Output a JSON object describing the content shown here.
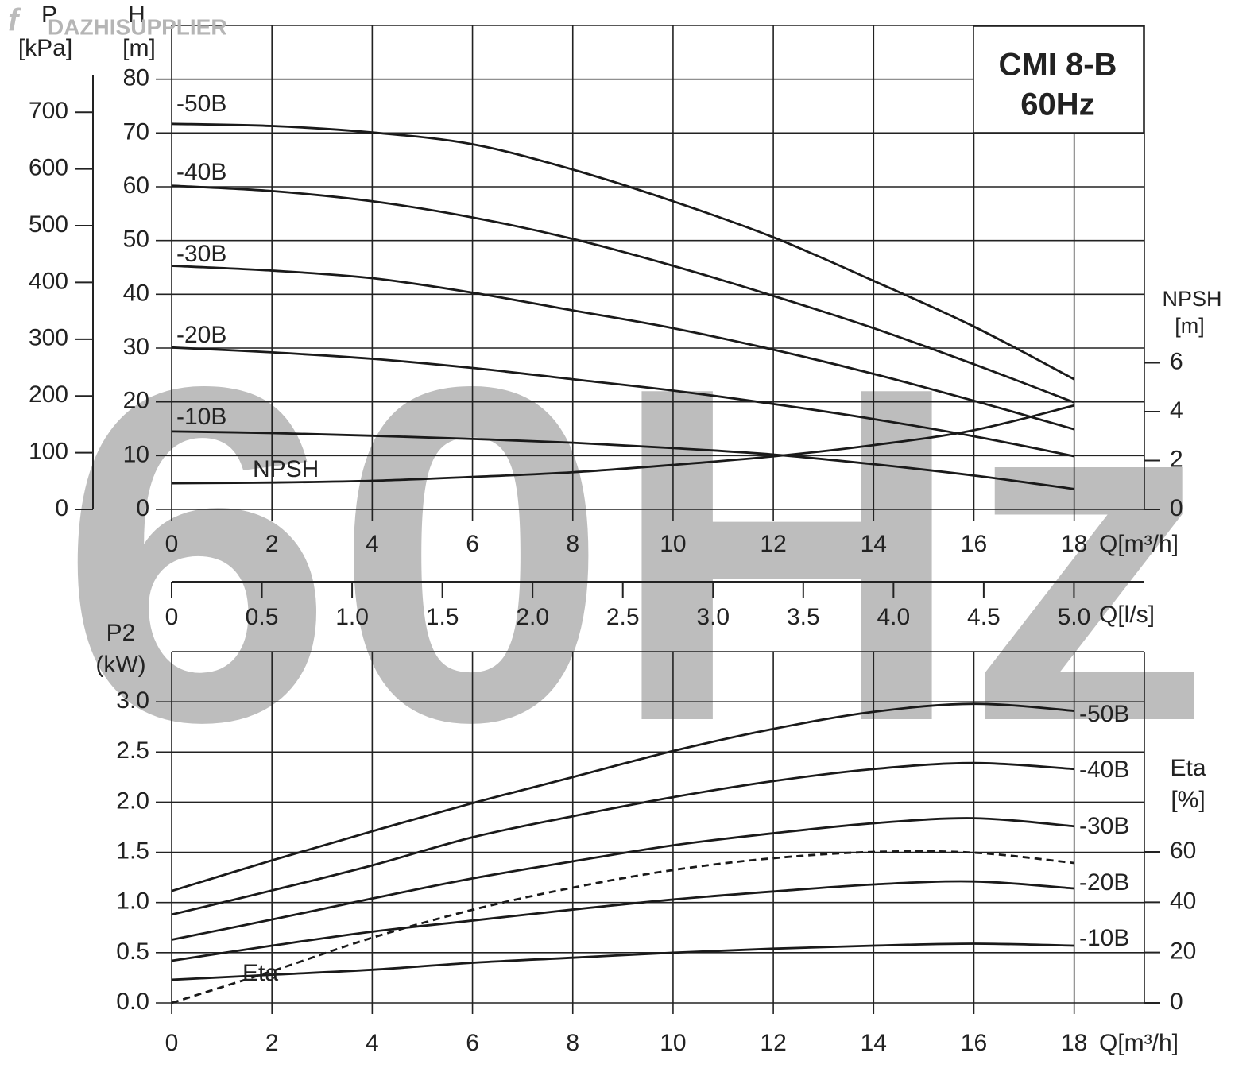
{
  "brand": "DAZHISUPPLIER",
  "watermark": "60Hz",
  "chart_data": [
    {
      "type": "line",
      "title": "CMI 8-B",
      "subtitle": "60Hz",
      "grid": true,
      "x_label": "Q[m³/h]",
      "xlim": [
        0,
        19.4
      ],
      "xticks": [
        0,
        2,
        4,
        6,
        8,
        10,
        12,
        14,
        16,
        18
      ],
      "x2_label": "Q[l/s]",
      "x2lim": [
        0,
        5.39
      ],
      "x2ticks": [
        0,
        0.5,
        {
          "value": 1,
          "label": "1.0"
        },
        1.5,
        {
          "value": 2,
          "label": "2.0"
        },
        2.5,
        {
          "value": 3,
          "label": "3.0"
        },
        3.5,
        {
          "value": 4,
          "label": "4.0"
        },
        4.5,
        {
          "value": 5,
          "label": "5.0"
        }
      ],
      "y_label": "H",
      "y_unit": "[m]",
      "ylim": [
        0,
        90
      ],
      "yticks": [
        0,
        10,
        20,
        30,
        40,
        50,
        60,
        70,
        80
      ],
      "y2_label": "NPSH",
      "y2_unit": "[m]",
      "y2lim": [
        0,
        19.8
      ],
      "y2ticks": [
        0,
        2,
        4,
        6
      ],
      "y3_label": "P",
      "y3_unit": "[kPa]",
      "y3lim": [
        0,
        853
      ],
      "y3ticks": [
        0,
        100,
        200,
        300,
        400,
        500,
        600,
        700
      ],
      "x": [
        0,
        2,
        4,
        6,
        8,
        10,
        12,
        14,
        16,
        18
      ],
      "series": [
        {
          "name": "-50B",
          "color": "#1a1a1a",
          "values": [
            71.7,
            71.3,
            70.1,
            67.9,
            63.2,
            57.3,
            50.6,
            42.5,
            34,
            24.2
          ]
        },
        {
          "name": "-40B",
          "color": "#1a1a1a",
          "values": [
            60.2,
            59.2,
            57.3,
            54.3,
            50.3,
            45.3,
            39.7,
            33.7,
            27,
            19.9
          ]
        },
        {
          "name": "-30B",
          "color": "#1a1a1a",
          "values": [
            45.3,
            44.4,
            43,
            40.3,
            37,
            33.7,
            29.7,
            25.2,
            20.2,
            14.9
          ]
        },
        {
          "name": "-20B",
          "color": "#1a1a1a",
          "values": [
            30.1,
            29.2,
            28,
            26.3,
            24.2,
            22.1,
            19.6,
            16.8,
            13.6,
            9.9
          ]
        },
        {
          "name": "-10B",
          "color": "#1a1a1a",
          "values": [
            14.5,
            14.2,
            13.7,
            13.1,
            12.4,
            11.4,
            10.2,
            8.4,
            6.3,
            3.8
          ]
        },
        {
          "name": "NPSH",
          "color": "#1a1a1a",
          "axis": "y2",
          "values": [
            1.07,
            1.1,
            1.17,
            1.33,
            1.52,
            1.82,
            2.17,
            2.63,
            3.24,
            4.25
          ]
        }
      ]
    },
    {
      "type": "line",
      "grid": true,
      "x_label": "Q[m³/h]",
      "xlim": [
        0,
        19.4
      ],
      "xticks": [
        0,
        2,
        4,
        6,
        8,
        10,
        12,
        14,
        16,
        18
      ],
      "y_label": "P2",
      "y_unit": "(kW)",
      "ylim": [
        0,
        3.5
      ],
      "yticks": [
        {
          "value": 0,
          "label": "0.0"
        },
        0.5,
        {
          "value": 1,
          "label": "1.0"
        },
        1.5,
        {
          "value": 2,
          "label": "2.0"
        },
        2.5,
        {
          "value": 3,
          "label": "3.0"
        }
      ],
      "y2_label": "Eta",
      "y2_unit": "[%]",
      "y2lim": [
        0,
        139.6
      ],
      "y2ticks": [
        0,
        20,
        40,
        60
      ],
      "x": [
        0,
        2,
        4,
        6,
        8,
        10,
        12,
        14,
        16,
        18
      ],
      "series": [
        {
          "name": "-50B",
          "color": "#1a1a1a",
          "values": [
            1.115,
            1.42,
            1.71,
            1.99,
            2.25,
            2.51,
            2.73,
            2.9,
            2.98,
            2.91
          ]
        },
        {
          "name": "-40B",
          "color": "#1a1a1a",
          "values": [
            0.88,
            1.12,
            1.37,
            1.65,
            1.86,
            2.05,
            2.21,
            2.33,
            2.39,
            2.33
          ]
        },
        {
          "name": "-30B",
          "color": "#1a1a1a",
          "values": [
            0.63,
            0.83,
            1.04,
            1.24,
            1.41,
            1.57,
            1.69,
            1.79,
            1.84,
            1.76
          ]
        },
        {
          "name": "-20B",
          "color": "#1a1a1a",
          "values": [
            0.42,
            0.57,
            0.71,
            0.82,
            0.93,
            1.03,
            1.11,
            1.18,
            1.21,
            1.14
          ]
        },
        {
          "name": "-10B",
          "color": "#1a1a1a",
          "values": [
            0.23,
            0.28,
            0.33,
            0.4,
            0.45,
            0.5,
            0.54,
            0.57,
            0.59,
            0.57
          ]
        },
        {
          "name": "Eta",
          "color": "#1a1a1a",
          "axis": "y2",
          "dashed": true,
          "values": [
            0,
            12.6,
            25.9,
            37,
            45.8,
            52.8,
            57.5,
            60,
            59.7,
            55.6
          ]
        }
      ]
    }
  ]
}
